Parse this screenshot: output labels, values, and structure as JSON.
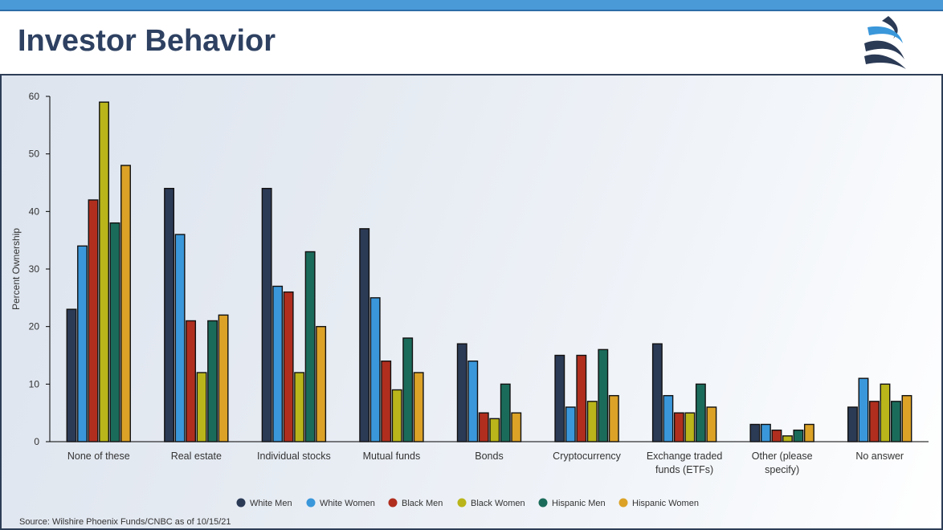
{
  "header": {
    "title": "Investor Behavior"
  },
  "source_text": "Source: Wilshire Phoenix Funds/CNBC as of 10/15/21",
  "colors": {
    "White Men": "#2b3a55",
    "White Women": "#3a97da",
    "Black Men": "#b02e1e",
    "Black Women": "#b9b51a",
    "Hispanic Men": "#1b6b5a",
    "Hispanic Women": "#dba227"
  },
  "chart_data": {
    "type": "bar",
    "ylabel": "Percent Ownership",
    "xlabel": "",
    "ylim": [
      0,
      60
    ],
    "yticks": [
      0,
      10,
      20,
      30,
      40,
      50,
      60
    ],
    "grid": false,
    "legend_position": "bottom",
    "categories": [
      [
        "None of these"
      ],
      [
        "Real estate"
      ],
      [
        "Individual stocks"
      ],
      [
        "Mutual funds"
      ],
      [
        "Bonds"
      ],
      [
        "Cryptocurrency"
      ],
      [
        "Exchange traded",
        "funds (ETFs)"
      ],
      [
        "Other (please",
        "specify)"
      ],
      [
        "No answer"
      ]
    ],
    "series": [
      {
        "name": "White Men",
        "values": [
          23,
          44,
          44,
          37,
          17,
          15,
          17,
          3,
          6
        ]
      },
      {
        "name": "White Women",
        "values": [
          34,
          36,
          27,
          25,
          14,
          6,
          8,
          3,
          11
        ]
      },
      {
        "name": "Black Men",
        "values": [
          42,
          21,
          26,
          14,
          5,
          15,
          5,
          2,
          7
        ]
      },
      {
        "name": "Black Women",
        "values": [
          59,
          12,
          12,
          9,
          4,
          7,
          5,
          1,
          10
        ]
      },
      {
        "name": "Hispanic Men",
        "values": [
          38,
          21,
          33,
          18,
          10,
          16,
          10,
          2,
          7
        ]
      },
      {
        "name": "Hispanic Women",
        "values": [
          48,
          22,
          20,
          12,
          5,
          8,
          6,
          3,
          8
        ]
      }
    ]
  }
}
